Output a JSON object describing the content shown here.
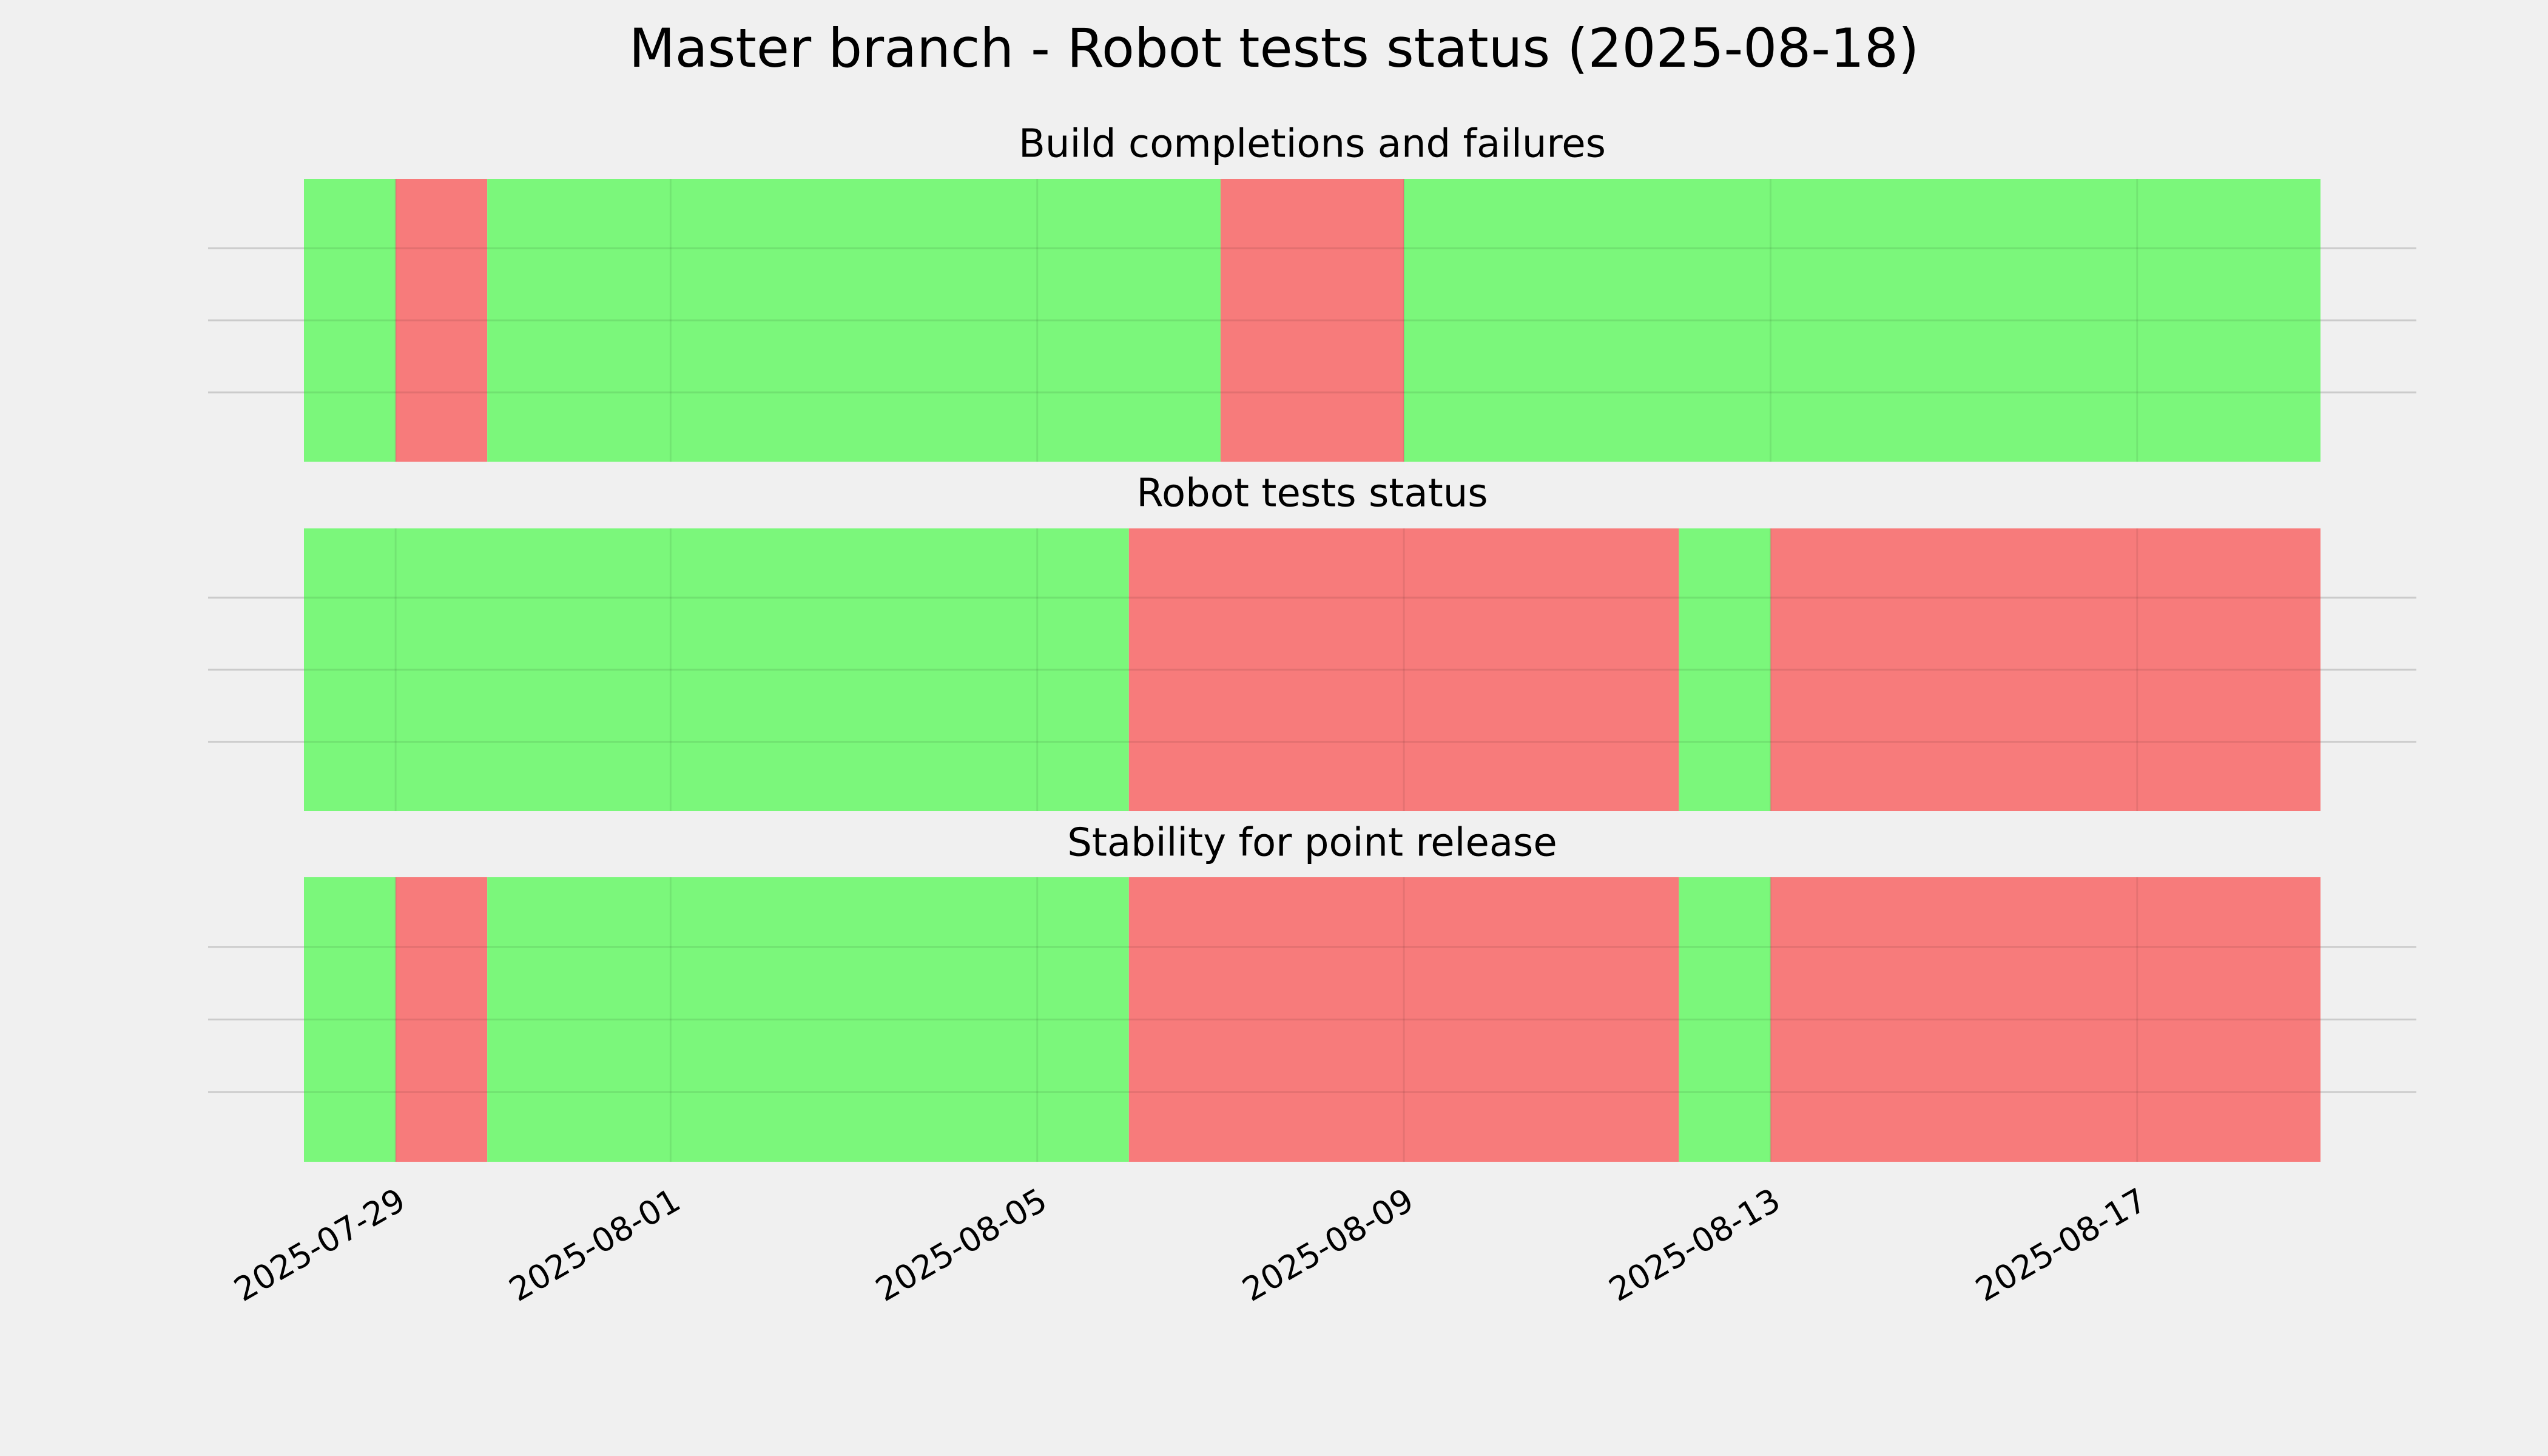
{
  "title": "Master branch - Robot tests status (2025-08-18)",
  "chart_data": [
    {
      "type": "timeline",
      "title": "Build completions and failures",
      "x": [
        "2025-07-28",
        "2025-07-29",
        "2025-07-30",
        "2025-08-07",
        "2025-08-09",
        "2025-08-19"
      ],
      "colors": [
        "#77f777",
        "#f77777",
        "#77f777",
        "#f77777",
        "#77f777"
      ],
      "xlim": [
        "2025-07-28",
        "2025-08-19"
      ],
      "xticks": [
        "2025-07-29",
        "2025-08-01",
        "2025-08-05",
        "2025-08-09",
        "2025-08-13",
        "2025-08-17"
      ],
      "grid": true
    },
    {
      "type": "timeline",
      "title": "Robot tests status",
      "x": [
        "2025-07-28",
        "2025-08-06",
        "2025-08-12",
        "2025-08-13",
        "2025-08-19"
      ],
      "colors": [
        "#77f777",
        "#f77777",
        "#77f777",
        "#f77777"
      ],
      "xlim": [
        "2025-07-28",
        "2025-08-19"
      ],
      "xticks": [
        "2025-07-29",
        "2025-08-01",
        "2025-08-05",
        "2025-08-09",
        "2025-08-13",
        "2025-08-17"
      ],
      "grid": true
    },
    {
      "type": "timeline",
      "title": "Stability for point release",
      "x": [
        "2025-07-28",
        "2025-07-29",
        "2025-07-30",
        "2025-08-06",
        "2025-08-12",
        "2025-08-13",
        "2025-08-19"
      ],
      "colors": [
        "#77f777",
        "#f77777",
        "#77f777",
        "#f77777",
        "#77f777",
        "#f77777"
      ],
      "xlim": [
        "2025-07-28",
        "2025-08-19"
      ],
      "xticks": [
        "2025-07-29",
        "2025-08-01",
        "2025-08-05",
        "2025-08-09",
        "2025-08-13",
        "2025-08-17"
      ],
      "grid": true
    }
  ]
}
